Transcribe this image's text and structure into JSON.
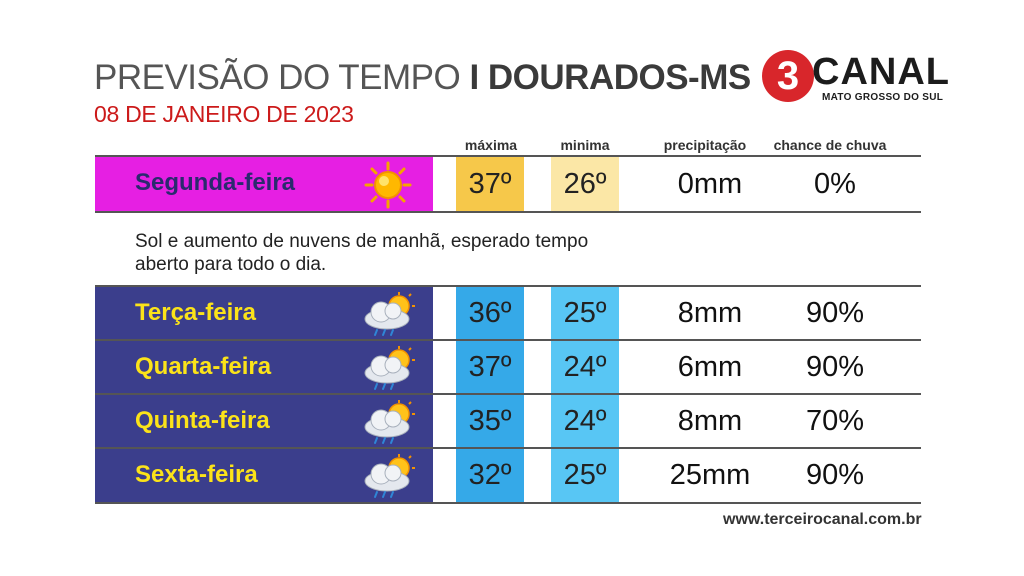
{
  "title": {
    "light": "PREVISÃO DO TEMPO ",
    "bold": "I DOURADOS-MS"
  },
  "date": "08 DE JANEIRO DE 2023",
  "logo": {
    "number": "3",
    "word": "CANAL",
    "subtitle": "MATO GROSSO DO SUL"
  },
  "headers": {
    "max": "máxima",
    "min": "minima",
    "precip": "precipitação",
    "chance": "chance de chuva"
  },
  "days": [
    {
      "label": "Segunda-feira",
      "icon": "sun-icon",
      "max": "37º",
      "min": "26º",
      "precip": "0mm",
      "chance": "0%"
    },
    {
      "label": "Terça-feira",
      "icon": "cloud-rain-sun-icon",
      "max": "36º",
      "min": "25º",
      "precip": "8mm",
      "chance": "90%"
    },
    {
      "label": "Quarta-feira",
      "icon": "cloud-rain-sun-icon",
      "max": "37º",
      "min": "24º",
      "precip": "6mm",
      "chance": "90%"
    },
    {
      "label": "Quinta-feira",
      "icon": "cloud-rain-sun-icon",
      "max": "35º",
      "min": "24º",
      "precip": "8mm",
      "chance": "70%"
    },
    {
      "label": "Sexta-feira",
      "icon": "cloud-rain-sun-icon",
      "max": "32º",
      "min": "25º",
      "precip": "25mm",
      "chance": "90%"
    }
  ],
  "description": "Sol e aumento de nuvens de manhã, esperado tempo aberto para todo o dia.",
  "website": "www.terceirocanal.com.br",
  "colors": {
    "monday_bg": "#e61fe3",
    "weekday_bg": "#3b3e8c",
    "monday_label": "#2a2a6e",
    "weekday_label": "#fbe319",
    "monday_max": "#f6c84a",
    "monday_min": "#fbe7a6",
    "weekday_max": "#35a9e8",
    "weekday_min": "#58c6f4",
    "date_red": "#cc1a1a"
  }
}
